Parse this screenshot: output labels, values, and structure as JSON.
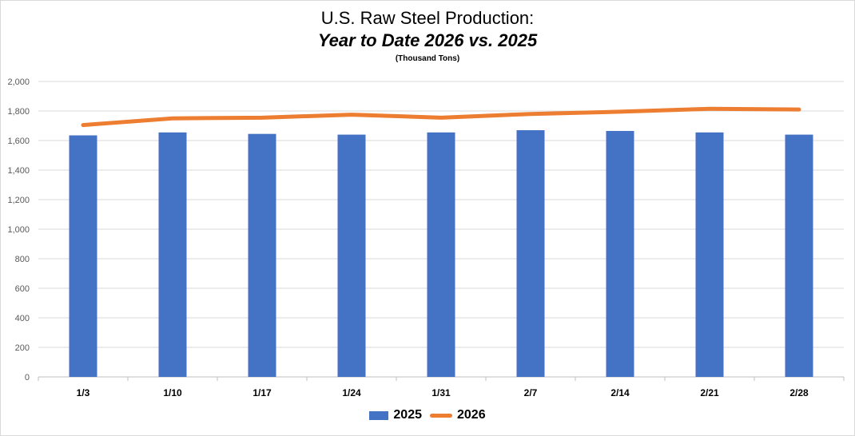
{
  "chart_data": {
    "type": "bar",
    "title": "U.S. Raw Steel Production:",
    "subtitle_italic": "Year to Date 2026 vs. 2025",
    "units_note": "(Thousand Tons)",
    "categories": [
      "1/3",
      "1/10",
      "1/17",
      "1/24",
      "1/31",
      "2/7",
      "2/14",
      "2/21",
      "2/28"
    ],
    "ylim": [
      0,
      2000
    ],
    "ytick_labels": [
      "0",
      "200",
      "400",
      "600",
      "800",
      "1,000",
      "1,200",
      "1,400",
      "1,600",
      "1,800",
      "2,000"
    ],
    "ytick_values": [
      0,
      200,
      400,
      600,
      800,
      1000,
      1200,
      1400,
      1600,
      1800,
      2000
    ],
    "grid": true,
    "legend_position": "bottom",
    "series": [
      {
        "name": "2025",
        "type": "bar",
        "color": "#4472C4",
        "values": [
          1635,
          1655,
          1645,
          1640,
          1655,
          1670,
          1665,
          1655,
          1640
        ]
      },
      {
        "name": "2026",
        "type": "line",
        "color": "#ED7D31",
        "values": [
          1705,
          1750,
          1755,
          1775,
          1755,
          1780,
          1795,
          1815,
          1810
        ]
      }
    ]
  }
}
